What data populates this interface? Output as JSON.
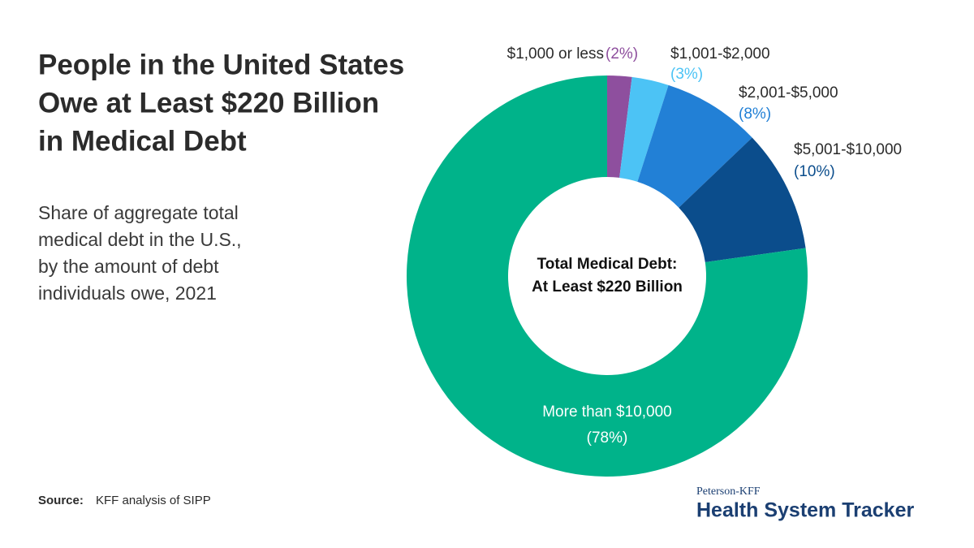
{
  "chart_data": {
    "type": "pie",
    "title": [
      "People in the United States",
      "Owe at Least $220 Billion",
      "in Medical Debt"
    ],
    "subtitle": [
      "Share of aggregate total",
      "medical debt in the U.S.,",
      "by the amount of debt",
      "individuals owe, 2021"
    ],
    "categories": [
      "$1,000 or less",
      "$1,001-$2,000",
      "$2,001-$5,000",
      "$5,001-$10,000",
      "More than $10,000"
    ],
    "values": [
      2,
      3,
      8,
      10,
      78
    ],
    "value_labels": [
      "(2%)",
      "(3%)",
      "(8%)",
      "(10%)",
      "(78%)"
    ],
    "colors": [
      "#8e4f9e",
      "#4cc3f5",
      "#2280d6",
      "#0b4d8c",
      "#00b38a"
    ],
    "center_text": [
      "Total Medical Debt:",
      "At Least $220 Billion"
    ]
  },
  "source_label": "Source:",
  "source": "KFF analysis of SIPP",
  "logo": {
    "line1": "Peterson-KFF",
    "line2": "Health System Tracker"
  }
}
